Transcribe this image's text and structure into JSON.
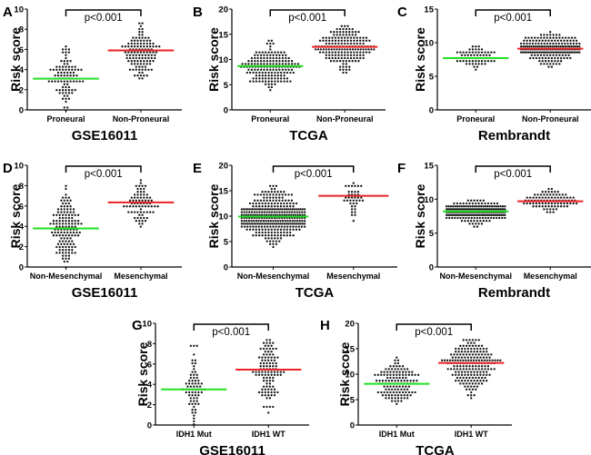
{
  "figure": {
    "panel_layout": "3 panels top row, 3 panels middle row, 2 panels bottom row (centered)"
  },
  "chart_data": [
    {
      "panel": "A",
      "type": "scatter",
      "subtype": "dot-plot",
      "title": "GSE16011",
      "ylabel": "Risk score",
      "ylim": [
        0,
        10
      ],
      "yticks": [
        0,
        2,
        4,
        6,
        8,
        10
      ],
      "categories": [
        "Proneural",
        "Non-Proneural"
      ],
      "annotation": "p<0.001",
      "groups": [
        {
          "name": "Proneural",
          "n": 90,
          "mean": 3.1,
          "min": 0.0,
          "max": 6.4,
          "mean_line_color": "#22e022"
        },
        {
          "name": "Non-Proneural",
          "n": 120,
          "mean": 5.9,
          "min": 3.1,
          "max": 8.5,
          "mean_line_color": "#ee2222"
        }
      ]
    },
    {
      "panel": "B",
      "type": "scatter",
      "subtype": "dot-plot",
      "title": "TCGA",
      "ylabel": "Risk score",
      "ylim": [
        0,
        20
      ],
      "yticks": [
        0,
        5,
        10,
        15,
        20
      ],
      "categories": [
        "Proneural",
        "Non-Proneural"
      ],
      "annotation": "p<0.001",
      "groups": [
        {
          "name": "Proneural",
          "n": 170,
          "mean": 8.7,
          "min": 4.2,
          "max": 13.8,
          "mean_line_color": "#22e022"
        },
        {
          "name": "Non-Proneural",
          "n": 180,
          "mean": 12.5,
          "min": 7.4,
          "max": 16.7,
          "mean_line_color": "#ee2222"
        }
      ]
    },
    {
      "panel": "C",
      "type": "scatter",
      "subtype": "dot-plot",
      "title": "Rembrandt",
      "ylabel": "Risk score",
      "ylim": [
        0,
        15
      ],
      "yticks": [
        0,
        5,
        10,
        15
      ],
      "categories": [
        "Proneural",
        "Non-Proneural"
      ],
      "annotation": "p<0.001",
      "groups": [
        {
          "name": "Proneural",
          "n": 70,
          "mean": 7.7,
          "min": 6.1,
          "max": 9.4,
          "mean_line_color": "#22e022"
        },
        {
          "name": "Non-Proneural",
          "n": 200,
          "mean": 9.1,
          "min": 6.3,
          "max": 11.4,
          "mean_line_color": "#ee2222"
        }
      ]
    },
    {
      "panel": "D",
      "type": "scatter",
      "subtype": "dot-plot",
      "title": "GSE16011",
      "ylabel": "Risk score",
      "ylim": [
        0,
        10
      ],
      "yticks": [
        0,
        2,
        4,
        6,
        8,
        10
      ],
      "categories": [
        "Non-Mesenchymal",
        "Mesenchymal"
      ],
      "annotation": "p<0.001",
      "groups": [
        {
          "name": "Non-Mesenchymal",
          "n": 140,
          "mean": 3.8,
          "min": 0.0,
          "max": 7.9,
          "mean_line_color": "#22e022"
        },
        {
          "name": "Mesenchymal",
          "n": 75,
          "mean": 6.35,
          "min": 4.0,
          "max": 8.5,
          "mean_line_color": "#ee2222"
        }
      ]
    },
    {
      "panel": "E",
      "type": "scatter",
      "subtype": "dot-plot",
      "title": "TCGA",
      "ylabel": "Risk score",
      "ylim": [
        0,
        20
      ],
      "yticks": [
        0,
        5,
        10,
        15,
        20
      ],
      "categories": [
        "Non-Mesenchymal",
        "Mesenchymal"
      ],
      "annotation": "p<0.001",
      "groups": [
        {
          "name": "Non-Mesenchymal",
          "n": 330,
          "mean": 9.9,
          "min": 4.2,
          "max": 15.8,
          "mean_line_color": "#22e022"
        },
        {
          "name": "Mesenchymal",
          "n": 40,
          "mean": 14.0,
          "min": 9.1,
          "max": 16.7,
          "mean_line_color": "#ee2222"
        }
      ]
    },
    {
      "panel": "F",
      "type": "scatter",
      "subtype": "dot-plot",
      "title": "Rembrandt",
      "ylabel": "Risk score",
      "ylim": [
        0,
        15
      ],
      "yticks": [
        0,
        5,
        10,
        15
      ],
      "categories": [
        "Non-Mesenchymal",
        "Mesenchymal"
      ],
      "annotation": "p<0.001",
      "groups": [
        {
          "name": "Non-Mesenchymal",
          "n": 200,
          "mean": 8.2,
          "min": 6.0,
          "max": 9.9,
          "mean_line_color": "#22e022"
        },
        {
          "name": "Mesenchymal",
          "n": 90,
          "mean": 9.7,
          "min": 7.9,
          "max": 11.4,
          "mean_line_color": "#ee2222"
        }
      ]
    },
    {
      "panel": "G",
      "type": "scatter",
      "subtype": "dot-plot",
      "title": "GSE16011",
      "ylabel": "Risk score",
      "ylim": [
        0,
        10
      ],
      "yticks": [
        0,
        2,
        4,
        6,
        8,
        10
      ],
      "categories": [
        "IDH1 Mut",
        "IDH1 WT"
      ],
      "annotation": "p<0.001",
      "groups": [
        {
          "name": "IDH1 Mut",
          "n": 70,
          "mean": 3.5,
          "min": 0.0,
          "max": 7.9,
          "mean_line_color": "#22e022"
        },
        {
          "name": "IDH1 WT",
          "n": 110,
          "mean": 5.45,
          "min": 1.1,
          "max": 8.5,
          "mean_line_color": "#ee2222"
        }
      ]
    },
    {
      "panel": "H",
      "type": "scatter",
      "subtype": "dot-plot",
      "title": "TCGA",
      "ylabel": "Risk score",
      "ylim": [
        0,
        20
      ],
      "yticks": [
        0,
        5,
        10,
        15,
        20
      ],
      "categories": [
        "IDH1 Mut",
        "IDH1 WT"
      ],
      "annotation": "p<0.001",
      "groups": [
        {
          "name": "IDH1 Mut",
          "n": 130,
          "mean": 8.1,
          "min": 4.2,
          "max": 13.5,
          "mean_line_color": "#22e022"
        },
        {
          "name": "IDH1 WT",
          "n": 200,
          "mean": 12.2,
          "min": 5.2,
          "max": 16.7,
          "mean_line_color": "#ee2222"
        }
      ]
    }
  ]
}
